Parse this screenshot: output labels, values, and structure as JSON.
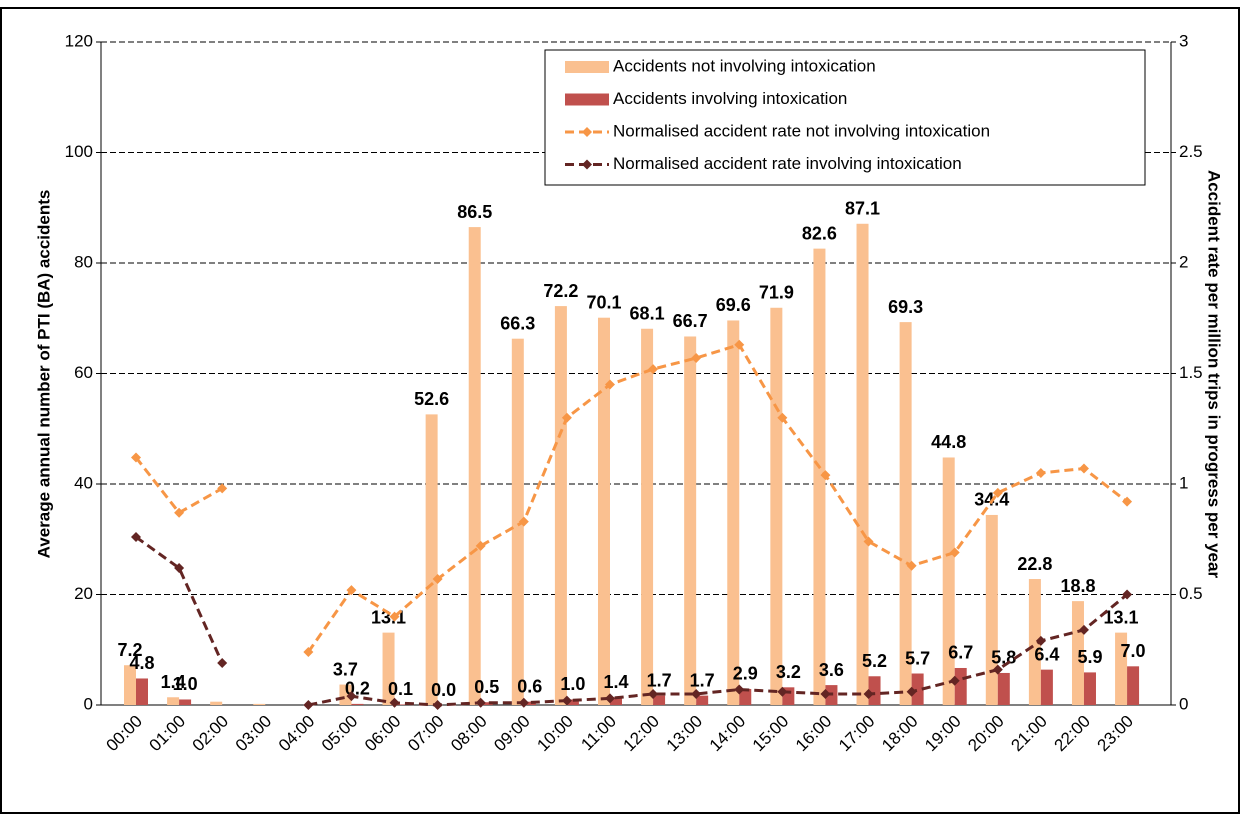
{
  "chart_data": {
    "type": "bar_line",
    "ylabel": "Average annual number of PTI (BA) accidents",
    "y2label": "Accident rate per million trips in progress per year",
    "categories": [
      "00:00",
      "01:00",
      "02:00",
      "03:00",
      "04:00",
      "05:00",
      "06:00",
      "07:00",
      "08:00",
      "09:00",
      "10:00",
      "11:00",
      "12:00",
      "13:00",
      "14:00",
      "15:00",
      "16:00",
      "17:00",
      "18:00",
      "19:00",
      "20:00",
      "21:00",
      "22:00",
      "23:00"
    ],
    "series": [
      {
        "name": "Accidents not involving intoxication",
        "kind": "bar",
        "color": "#fac090",
        "values": [
          7.2,
          1.4,
          0.6,
          0.2,
          0.0,
          3.7,
          13.1,
          52.6,
          86.5,
          66.3,
          72.2,
          70.1,
          68.1,
          66.7,
          69.6,
          71.9,
          82.6,
          87.1,
          69.3,
          44.8,
          34.4,
          22.8,
          18.8,
          13.1
        ],
        "value_labels": [
          "7.2",
          "1.4",
          null,
          null,
          null,
          "3.7",
          "13.1",
          "52.6",
          "86.5",
          "66.3",
          "72.2",
          "70.1",
          "68.1",
          "66.7",
          "69.6",
          "71.9",
          "82.6",
          "87.1",
          "69.3",
          "44.8",
          "34.4",
          "22.8",
          "18.8",
          "13.1"
        ]
      },
      {
        "name": "Accidents involving intoxication",
        "kind": "bar",
        "color": "#c0504d",
        "values": [
          4.8,
          1.0,
          0.0,
          0.0,
          0.0,
          0.2,
          0.1,
          0.0,
          0.5,
          0.6,
          1.0,
          1.4,
          1.7,
          1.7,
          2.9,
          3.2,
          3.6,
          5.2,
          5.7,
          6.7,
          5.8,
          6.4,
          5.9,
          7.0
        ],
        "value_labels": [
          "4.8",
          "1.0",
          null,
          null,
          null,
          "0.2",
          "0.1",
          "0.0",
          "0.5",
          "0.6",
          "1.0",
          "1.4",
          "1.7",
          "1.7",
          "2.9",
          "3.2",
          "3.6",
          "5.2",
          "5.7",
          "6.7",
          "5.8",
          "6.4",
          "5.9",
          "7.0"
        ]
      },
      {
        "name": "Normalised accident rate not involving intoxication",
        "kind": "line",
        "axis": "y2",
        "color": "#f79646",
        "values": [
          1.12,
          0.87,
          0.98,
          null,
          0.24,
          0.52,
          0.4,
          0.57,
          0.72,
          0.83,
          1.3,
          1.45,
          1.52,
          1.57,
          1.63,
          1.3,
          1.04,
          0.74,
          0.63,
          0.69,
          0.96,
          1.05,
          1.07,
          0.92
        ]
      },
      {
        "name": "Normalised accident rate involving intoxication",
        "kind": "line",
        "axis": "y2",
        "color": "#632523",
        "values": [
          0.76,
          0.62,
          0.19,
          null,
          0.0,
          0.04,
          0.01,
          0.0,
          0.01,
          0.01,
          0.02,
          0.03,
          0.05,
          0.05,
          0.07,
          0.06,
          0.05,
          0.05,
          0.06,
          0.11,
          0.16,
          0.29,
          0.34,
          0.5
        ]
      }
    ],
    "ylim": [
      0,
      120
    ],
    "yticks": [
      0,
      20,
      40,
      60,
      80,
      100,
      120
    ],
    "y2lim": [
      0,
      3
    ],
    "y2ticks": [
      0,
      0.5,
      1,
      1.5,
      2,
      2.5,
      3
    ],
    "grid": true,
    "legend": "top-right"
  }
}
